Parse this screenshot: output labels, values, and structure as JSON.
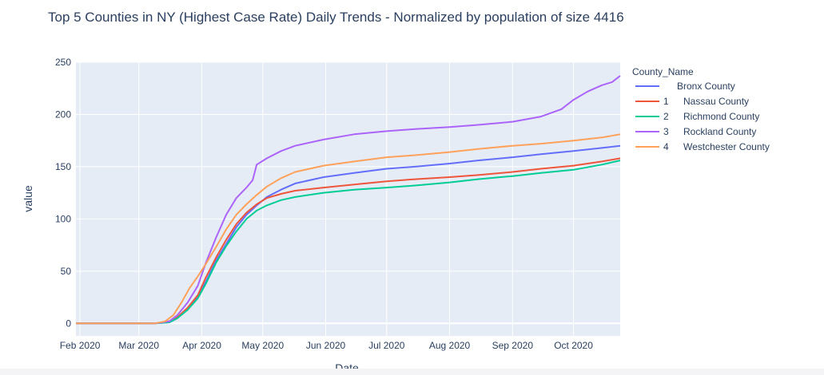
{
  "chart_data": {
    "type": "line",
    "title": "Top 5 Counties in NY (Highest Case Rate) Daily Trends - Normalized by population of size 4416",
    "xlabel": "Date",
    "ylabel": "value",
    "ylim": [
      -12,
      250
    ],
    "xlim": [
      "2020-01-30",
      "2020-10-24"
    ],
    "yticks": [
      0,
      50,
      100,
      150,
      200,
      250
    ],
    "xticks": [
      {
        "label": "Feb 2020",
        "date": "2020-02-01"
      },
      {
        "label": "Mar 2020",
        "date": "2020-03-01"
      },
      {
        "label": "Apr 2020",
        "date": "2020-04-01"
      },
      {
        "label": "May 2020",
        "date": "2020-05-01"
      },
      {
        "label": "Jun 2020",
        "date": "2020-06-01"
      },
      {
        "label": "Jul 2020",
        "date": "2020-07-01"
      },
      {
        "label": "Aug 2020",
        "date": "2020-08-01"
      },
      {
        "label": "Sep 2020",
        "date": "2020-09-01"
      },
      {
        "label": "Oct 2020",
        "date": "2020-10-01"
      }
    ],
    "grid": true,
    "legend_title": "County_Name",
    "legend_position": "right",
    "series": [
      {
        "index": "",
        "name": "Bronx County",
        "color": "#636efa",
        "points": [
          [
            "2020-01-30",
            0
          ],
          [
            "2020-03-09",
            0
          ],
          [
            "2020-03-16",
            1
          ],
          [
            "2020-03-20",
            5
          ],
          [
            "2020-03-25",
            14
          ],
          [
            "2020-03-30",
            25
          ],
          [
            "2020-04-03",
            40
          ],
          [
            "2020-04-08",
            60
          ],
          [
            "2020-04-13",
            76
          ],
          [
            "2020-04-18",
            92
          ],
          [
            "2020-04-23",
            104
          ],
          [
            "2020-04-28",
            113
          ],
          [
            "2020-05-03",
            121
          ],
          [
            "2020-05-10",
            128
          ],
          [
            "2020-05-17",
            134
          ],
          [
            "2020-05-31",
            140
          ],
          [
            "2020-06-15",
            144
          ],
          [
            "2020-07-01",
            148
          ],
          [
            "2020-07-15",
            150
          ],
          [
            "2020-08-01",
            153
          ],
          [
            "2020-08-15",
            156
          ],
          [
            "2020-09-01",
            159
          ],
          [
            "2020-09-15",
            162
          ],
          [
            "2020-10-01",
            165
          ],
          [
            "2020-10-15",
            168
          ],
          [
            "2020-10-24",
            170
          ]
        ]
      },
      {
        "index": "1",
        "name": "Nassau County",
        "color": "#EF553B",
        "points": [
          [
            "2020-01-30",
            0
          ],
          [
            "2020-03-09",
            0
          ],
          [
            "2020-03-16",
            2
          ],
          [
            "2020-03-20",
            6
          ],
          [
            "2020-03-25",
            15
          ],
          [
            "2020-03-30",
            27
          ],
          [
            "2020-04-03",
            44
          ],
          [
            "2020-04-08",
            63
          ],
          [
            "2020-04-13",
            80
          ],
          [
            "2020-04-18",
            95
          ],
          [
            "2020-04-23",
            106
          ],
          [
            "2020-04-28",
            114
          ],
          [
            "2020-05-03",
            120
          ],
          [
            "2020-05-10",
            124
          ],
          [
            "2020-05-17",
            127
          ],
          [
            "2020-05-31",
            130
          ],
          [
            "2020-06-15",
            133
          ],
          [
            "2020-07-01",
            136
          ],
          [
            "2020-07-15",
            138
          ],
          [
            "2020-08-01",
            140
          ],
          [
            "2020-08-15",
            142
          ],
          [
            "2020-09-01",
            145
          ],
          [
            "2020-09-15",
            148
          ],
          [
            "2020-10-01",
            151
          ],
          [
            "2020-10-15",
            155
          ],
          [
            "2020-10-24",
            158
          ]
        ]
      },
      {
        "index": "2",
        "name": "Richmond County",
        "color": "#00cc96",
        "points": [
          [
            "2020-01-30",
            0
          ],
          [
            "2020-03-09",
            0
          ],
          [
            "2020-03-16",
            1
          ],
          [
            "2020-03-20",
            5
          ],
          [
            "2020-03-25",
            13
          ],
          [
            "2020-03-30",
            24
          ],
          [
            "2020-04-03",
            38
          ],
          [
            "2020-04-08",
            58
          ],
          [
            "2020-04-13",
            74
          ],
          [
            "2020-04-18",
            88
          ],
          [
            "2020-04-23",
            100
          ],
          [
            "2020-04-28",
            108
          ],
          [
            "2020-05-03",
            113
          ],
          [
            "2020-05-10",
            118
          ],
          [
            "2020-05-17",
            121
          ],
          [
            "2020-05-31",
            125
          ],
          [
            "2020-06-15",
            128
          ],
          [
            "2020-07-01",
            130
          ],
          [
            "2020-07-15",
            132
          ],
          [
            "2020-08-01",
            135
          ],
          [
            "2020-08-15",
            138
          ],
          [
            "2020-09-01",
            141
          ],
          [
            "2020-09-15",
            144
          ],
          [
            "2020-10-01",
            147
          ],
          [
            "2020-10-15",
            152
          ],
          [
            "2020-10-24",
            156
          ]
        ]
      },
      {
        "index": "3",
        "name": "Rockland County",
        "color": "#ab63fa",
        "points": [
          [
            "2020-01-30",
            0
          ],
          [
            "2020-03-09",
            0
          ],
          [
            "2020-03-16",
            2
          ],
          [
            "2020-03-20",
            8
          ],
          [
            "2020-03-25",
            20
          ],
          [
            "2020-03-30",
            36
          ],
          [
            "2020-04-03",
            58
          ],
          [
            "2020-04-08",
            82
          ],
          [
            "2020-04-13",
            104
          ],
          [
            "2020-04-18",
            120
          ],
          [
            "2020-04-23",
            130
          ],
          [
            "2020-04-26",
            137
          ],
          [
            "2020-04-28",
            152
          ],
          [
            "2020-05-03",
            158
          ],
          [
            "2020-05-10",
            165
          ],
          [
            "2020-05-17",
            170
          ],
          [
            "2020-05-31",
            176
          ],
          [
            "2020-06-15",
            181
          ],
          [
            "2020-07-01",
            184
          ],
          [
            "2020-07-15",
            186
          ],
          [
            "2020-08-01",
            188
          ],
          [
            "2020-08-15",
            190
          ],
          [
            "2020-09-01",
            193
          ],
          [
            "2020-09-15",
            198
          ],
          [
            "2020-09-25",
            205
          ],
          [
            "2020-10-01",
            214
          ],
          [
            "2020-10-08",
            222
          ],
          [
            "2020-10-15",
            228
          ],
          [
            "2020-10-20",
            231
          ],
          [
            "2020-10-24",
            237
          ]
        ]
      },
      {
        "index": "4",
        "name": "Westchester County",
        "color": "#FFA15A",
        "points": [
          [
            "2020-01-30",
            0
          ],
          [
            "2020-03-09",
            0
          ],
          [
            "2020-03-14",
            2
          ],
          [
            "2020-03-18",
            8
          ],
          [
            "2020-03-22",
            20
          ],
          [
            "2020-03-26",
            34
          ],
          [
            "2020-03-30",
            45
          ],
          [
            "2020-04-03",
            57
          ],
          [
            "2020-04-08",
            73
          ],
          [
            "2020-04-13",
            90
          ],
          [
            "2020-04-18",
            104
          ],
          [
            "2020-04-23",
            114
          ],
          [
            "2020-04-28",
            123
          ],
          [
            "2020-05-03",
            131
          ],
          [
            "2020-05-10",
            139
          ],
          [
            "2020-05-17",
            145
          ],
          [
            "2020-05-31",
            151
          ],
          [
            "2020-06-15",
            155
          ],
          [
            "2020-07-01",
            159
          ],
          [
            "2020-07-15",
            161
          ],
          [
            "2020-08-01",
            164
          ],
          [
            "2020-08-15",
            167
          ],
          [
            "2020-09-01",
            170
          ],
          [
            "2020-09-15",
            172
          ],
          [
            "2020-10-01",
            175
          ],
          [
            "2020-10-15",
            178
          ],
          [
            "2020-10-24",
            181
          ]
        ]
      }
    ]
  }
}
